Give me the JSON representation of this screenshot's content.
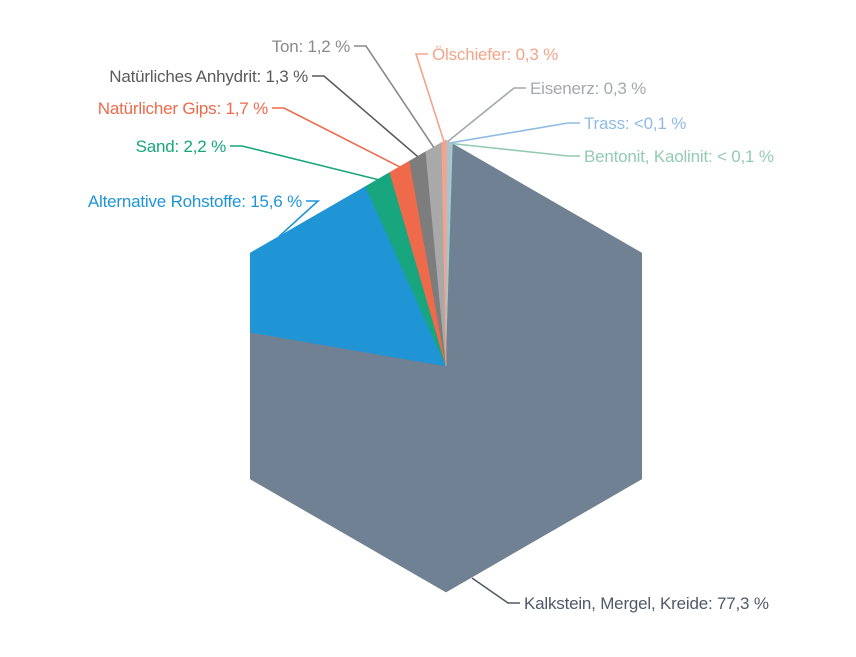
{
  "chart_data": {
    "type": "pie",
    "title": "",
    "slices": [
      {
        "label": "Kalkstein, Mergel, Kreide",
        "value": 77.3,
        "text": "Kalkstein, Mergel, Kreide: 77,3 %",
        "color": "#6f8192",
        "label_color": "#4f5a66"
      },
      {
        "label": "Alternative Rohstoffe",
        "value": 15.6,
        "text": "Alternative Rohstoffe: 15,6 %",
        "color": "#1f95d6",
        "label_color": "#1f95d6"
      },
      {
        "label": "Sand",
        "value": 2.2,
        "text": "Sand: 2,2 %",
        "color": "#17a67e",
        "label_color": "#17a67e"
      },
      {
        "label": "Natürlicher Gips",
        "value": 1.7,
        "text": "Natürlicher Gips: 1,7 %",
        "color": "#ef6a4a",
        "label_color": "#ef6a4a"
      },
      {
        "label": "Natürliches Anhydrit",
        "value": 1.3,
        "text": "Natürliches Anhydrit: 1,3 %",
        "color": "#7d7d7d",
        "label_color": "#5a5a5a"
      },
      {
        "label": "Ton",
        "value": 1.2,
        "text": "Ton: 1,2 %",
        "color": "#a9a9a9",
        "label_color": "#8a8a8a"
      },
      {
        "label": "Ölschiefer",
        "value": 0.3,
        "text": "Ölschiefer: 0,3 %",
        "color": "#f2a58a",
        "label_color": "#f2a58a"
      },
      {
        "label": "Eisenerz",
        "value": 0.3,
        "text": "Eisenerz: 0,3 %",
        "color": "#b9bcc4",
        "label_color": "#a4a8b0"
      },
      {
        "label": "Trass",
        "value": 0.1,
        "text": "Trass: <0,1 %",
        "color": "#9cc5ea",
        "label_color": "#8fbce6"
      },
      {
        "label": "Bentonit, Kaolinit",
        "value": 0.1,
        "text": "Bentonit, Kaolinit: < 0,1 %",
        "color": "#9fd3b8",
        "label_color": "#93cbb0"
      }
    ]
  }
}
